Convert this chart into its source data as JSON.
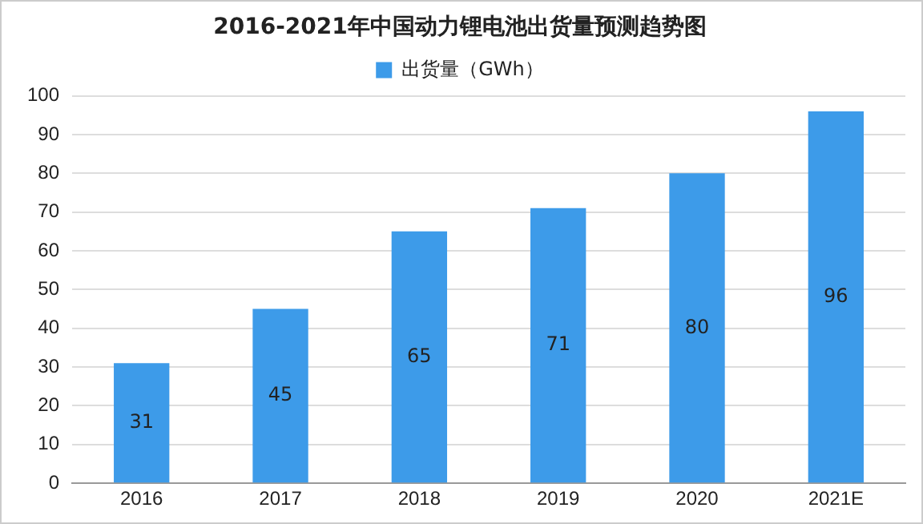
{
  "chart_data": {
    "type": "bar",
    "title": "2016-2021年中国动力锂电池出货量预测趋势图",
    "categories": [
      "2016",
      "2017",
      "2018",
      "2019",
      "2020",
      "2021E"
    ],
    "series": [
      {
        "name": "出货量（GWh）",
        "color": "#3d9be9",
        "values": [
          31,
          45,
          65,
          71,
          80,
          96
        ]
      }
    ],
    "ylim": [
      0,
      100
    ],
    "yticks": [
      0,
      10,
      20,
      30,
      40,
      50,
      60,
      70,
      80,
      90,
      100
    ],
    "grid": "y",
    "legend": "top",
    "data_labels": true
  }
}
